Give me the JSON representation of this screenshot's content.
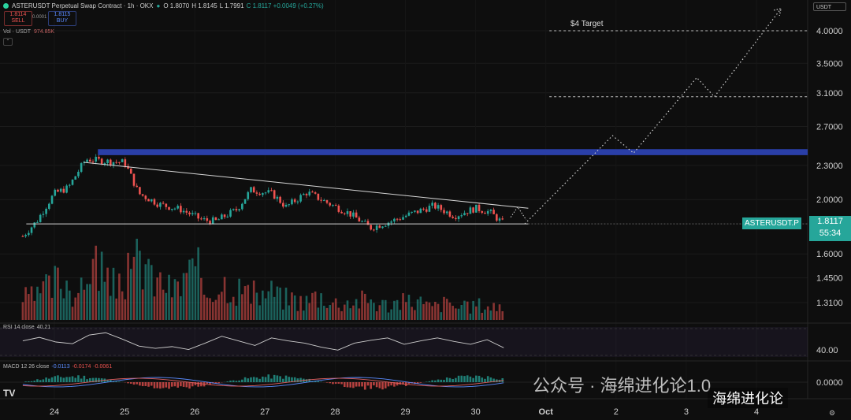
{
  "header": {
    "symbol": "ASTERUSDT Perpetual Swap Contract · 1h · OKX",
    "ohlc": [
      "O 1.8070",
      "H 1.8145",
      "L 1.7991",
      "C 1.8117 +0.0049 (+0.27%)"
    ],
    "sell": {
      "price": "1.8114",
      "label": "SELL"
    },
    "buy": {
      "price": "1.8115",
      "label": "BUY"
    },
    "spread": "0.0001",
    "currency": "USDT",
    "volume_label": "Vol · USDT",
    "volume_value": "974.85K"
  },
  "rsi": {
    "label": "RSI 14 close",
    "value": "40.21",
    "axis_label": "40.00"
  },
  "macd": {
    "label": "MACD 12 26 close",
    "v1": "-0.0113",
    "v2": "-0.0174",
    "v3": "-0.0061",
    "axis_label": "0.0000"
  },
  "last_price": {
    "ticker": "ASTERUSDT.P",
    "price": "1.8117",
    "countdown": "55:34"
  },
  "annotations": {
    "target_label": "$4 Target"
  },
  "watermark": {
    "text": "公众号 · 海绵进化论1.0",
    "channel": "海绵进化论"
  },
  "colors": {
    "up": "#26a69a",
    "down": "#ef5350",
    "resistance_band": "#2a3fa8",
    "background": "#0e0e0e"
  },
  "chart_data": {
    "type": "candlestick",
    "y_scale": "log",
    "y_ticks": [
      4.0,
      3.5,
      3.1,
      2.7,
      2.3,
      2.0,
      1.6,
      1.45,
      1.31
    ],
    "y_tick_labels": [
      "4.0000",
      "3.5000",
      "3.1000",
      "2.7000",
      "2.3000",
      "2.0000",
      "1.6000",
      "1.4500",
      "1.3100"
    ],
    "x_tick_labels": [
      "24",
      "25",
      "26",
      "27",
      "28",
      "29",
      "30",
      "Oct",
      "2",
      "3",
      "4"
    ],
    "horizontal_levels": [
      4.0,
      3.05
    ],
    "resistance_zone": [
      2.4,
      2.46
    ],
    "descending_trendline": [
      [
        24.42,
        2.33
      ],
      [
        30.75,
        1.93
      ]
    ],
    "support_line": [
      [
        23.6,
        1.81
      ],
      [
        30.75,
        1.81
      ]
    ],
    "projection_path": [
      [
        30.7,
        1.81
      ],
      [
        31.95,
        2.6
      ],
      [
        32.25,
        2.42
      ],
      [
        33.15,
        3.3
      ],
      [
        33.4,
        3.05
      ],
      [
        34.35,
        4.38
      ]
    ],
    "close_path": [
      [
        23.55,
        1.72
      ],
      [
        23.75,
        1.83
      ],
      [
        24.0,
        2.05
      ],
      [
        24.2,
        2.1
      ],
      [
        24.45,
        2.36
      ],
      [
        24.75,
        2.34
      ],
      [
        25.0,
        2.33
      ],
      [
        25.2,
        2.05
      ],
      [
        25.5,
        1.96
      ],
      [
        25.8,
        1.92
      ],
      [
        26.1,
        1.84
      ],
      [
        26.3,
        1.83
      ],
      [
        26.6,
        1.92
      ],
      [
        26.8,
        2.08
      ],
      [
        27.1,
        2.05
      ],
      [
        27.3,
        1.94
      ],
      [
        27.6,
        2.06
      ],
      [
        27.9,
        1.97
      ],
      [
        28.2,
        1.89
      ],
      [
        28.5,
        1.78
      ],
      [
        28.8,
        1.83
      ],
      [
        29.1,
        1.89
      ],
      [
        29.4,
        1.95
      ],
      [
        29.7,
        1.87
      ],
      [
        30.0,
        1.93
      ],
      [
        30.2,
        1.9
      ],
      [
        30.4,
        1.81
      ]
    ],
    "volume_relative": [
      0.35,
      0.5,
      0.62,
      0.45,
      0.9,
      0.55,
      0.7,
      0.95,
      0.6,
      0.5,
      0.75,
      0.45,
      0.6,
      0.5,
      0.4,
      0.45,
      0.35,
      0.3,
      0.38,
      0.28,
      0.3,
      0.32,
      0.25,
      0.28,
      0.3,
      0.22,
      0.26,
      0.2,
      0.24,
      0.22
    ],
    "rsi_range": [
      20,
      80
    ],
    "rsi_values": [
      52,
      58,
      50,
      47,
      62,
      66,
      55,
      43,
      39,
      42,
      37,
      48,
      60,
      52,
      44,
      57,
      52,
      48,
      41,
      36,
      48,
      53,
      57,
      46,
      52,
      57,
      51,
      46,
      54,
      40
    ]
  }
}
